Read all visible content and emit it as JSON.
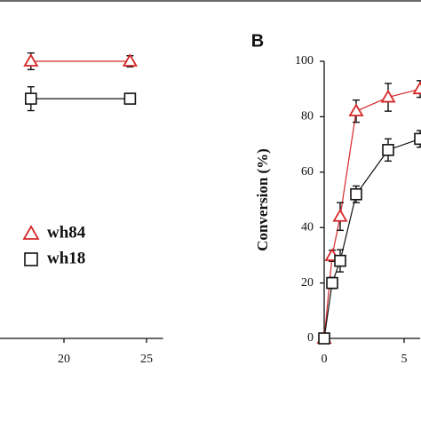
{
  "chart_data": [
    {
      "type": "line",
      "xlim": [
        16,
        26
      ],
      "xticks": [
        20,
        25
      ],
      "ylim": [
        0,
        100
      ],
      "legend": true,
      "series": [
        {
          "name": "wh84",
          "color": "#d62728",
          "marker": "triangle",
          "x": [
            18,
            24
          ],
          "values": [
            100,
            100
          ],
          "errors": [
            3,
            2
          ]
        },
        {
          "name": "wh18",
          "color": "#111111",
          "marker": "square",
          "x": [
            18,
            24
          ],
          "values": [
            86.5,
            86.5
          ],
          "errors": [
            4.3,
            1.5
          ]
        }
      ]
    },
    {
      "type": "line",
      "title": "B",
      "y_label": "Conversion (%)",
      "xlim": [
        0,
        6
      ],
      "xticks": [
        0,
        5
      ],
      "ylim": [
        0,
        100
      ],
      "yticks": [
        0,
        20,
        40,
        60,
        80,
        100
      ],
      "series": [
        {
          "color": "#d62728",
          "marker": "triangle",
          "x": [
            0,
            0.5,
            1,
            2,
            4,
            6
          ],
          "values": [
            0,
            29.8,
            44,
            82,
            87,
            90
          ],
          "errors": [
            0,
            2,
            5,
            4,
            5,
            3
          ]
        },
        {
          "color": "#111111",
          "marker": "square",
          "x": [
            0,
            0.5,
            1,
            2,
            4,
            6
          ],
          "values": [
            0,
            20,
            28,
            52,
            68,
            72
          ],
          "errors": [
            0,
            2,
            4,
            3,
            4,
            3
          ]
        }
      ]
    }
  ]
}
